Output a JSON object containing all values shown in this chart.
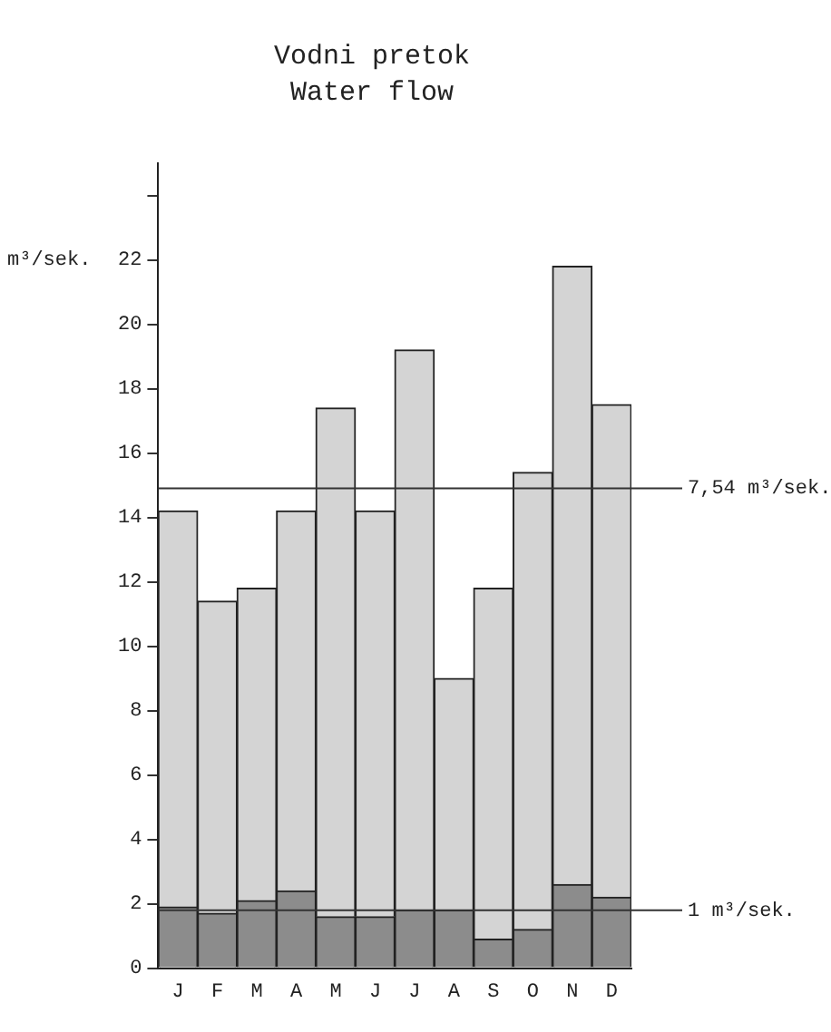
{
  "chart_data": {
    "type": "bar",
    "title": "Vodni pretok",
    "subtitle": "Water flow",
    "ylabel": "m³/sek.",
    "categories": [
      "J",
      "F",
      "M",
      "A",
      "M",
      "J",
      "J",
      "A",
      "S",
      "O",
      "N",
      "D"
    ],
    "stacked": true,
    "series": [
      {
        "color": "#8c8c8c",
        "values": [
          1.9,
          1.7,
          2.1,
          2.4,
          1.6,
          1.6,
          1.8,
          1.8,
          0.9,
          1.2,
          2.6,
          2.2
        ]
      },
      {
        "color": "#d4d4d4",
        "values": [
          12.3,
          9.7,
          9.7,
          11.8,
          15.8,
          12.6,
          17.4,
          7.2,
          10.9,
          14.2,
          19.2,
          15.3
        ]
      }
    ],
    "ylim": [
      0,
      25
    ],
    "yticks": [
      0,
      2,
      4,
      6,
      8,
      10,
      12,
      14,
      16,
      18,
      20,
      22,
      {
        "value": 24,
        "label": null
      }
    ],
    "ref_lines": [
      {
        "axis": "y",
        "value": 14.9,
        "label": "7,54 m³/sek."
      },
      {
        "axis": "y",
        "value": 1.8,
        "label": "1 m³/sek."
      }
    ],
    "grid": false,
    "legend": false
  }
}
